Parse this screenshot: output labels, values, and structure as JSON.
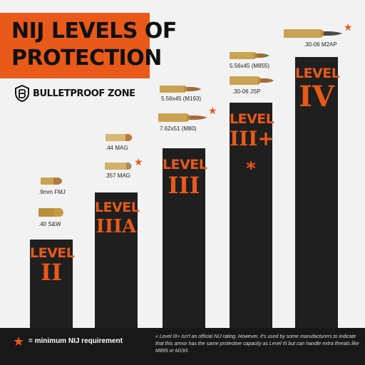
{
  "header": {
    "title_line1": "NIJ LEVELS OF",
    "title_line2": "PROTECTION"
  },
  "brand": {
    "logo_text": "BULLETPROOF ZONE"
  },
  "levels": [
    {
      "word": "LEVEL",
      "numeral": "II",
      "rounds": [
        ".40 S&W",
        ".9mm FMJ"
      ]
    },
    {
      "word": "LEVEL",
      "numeral": "IIIA",
      "rounds": [
        ".357 MAG",
        ".44 MAG"
      ]
    },
    {
      "word": "LEVEL",
      "numeral": "III",
      "rounds": [
        "7.62x51 (M80)",
        "5.56x45 (M193)"
      ]
    },
    {
      "word": "LEVEL",
      "numeral": "III+",
      "rounds": [
        ".30-06 JSP",
        "5.56x45 (M855)"
      ]
    },
    {
      "word": "LEVEL",
      "numeral": "IV",
      "rounds": [
        ".30-06 M2AP"
      ]
    }
  ],
  "marks": {
    "star": "★",
    "asterisk": "*"
  },
  "legend": {
    "text": "= minimum NIJ requirement"
  },
  "footnote": {
    "text": "« Level III+ isn't an official NIJ rating. However, it's used by some manufacturers to indicate that this armor has the same protective capacity as Level III but can handle extra threats like M855 or M193."
  },
  "colors": {
    "accent": "#e8591a",
    "bar": "#1f1f1f",
    "background": "#f2f2f2"
  }
}
